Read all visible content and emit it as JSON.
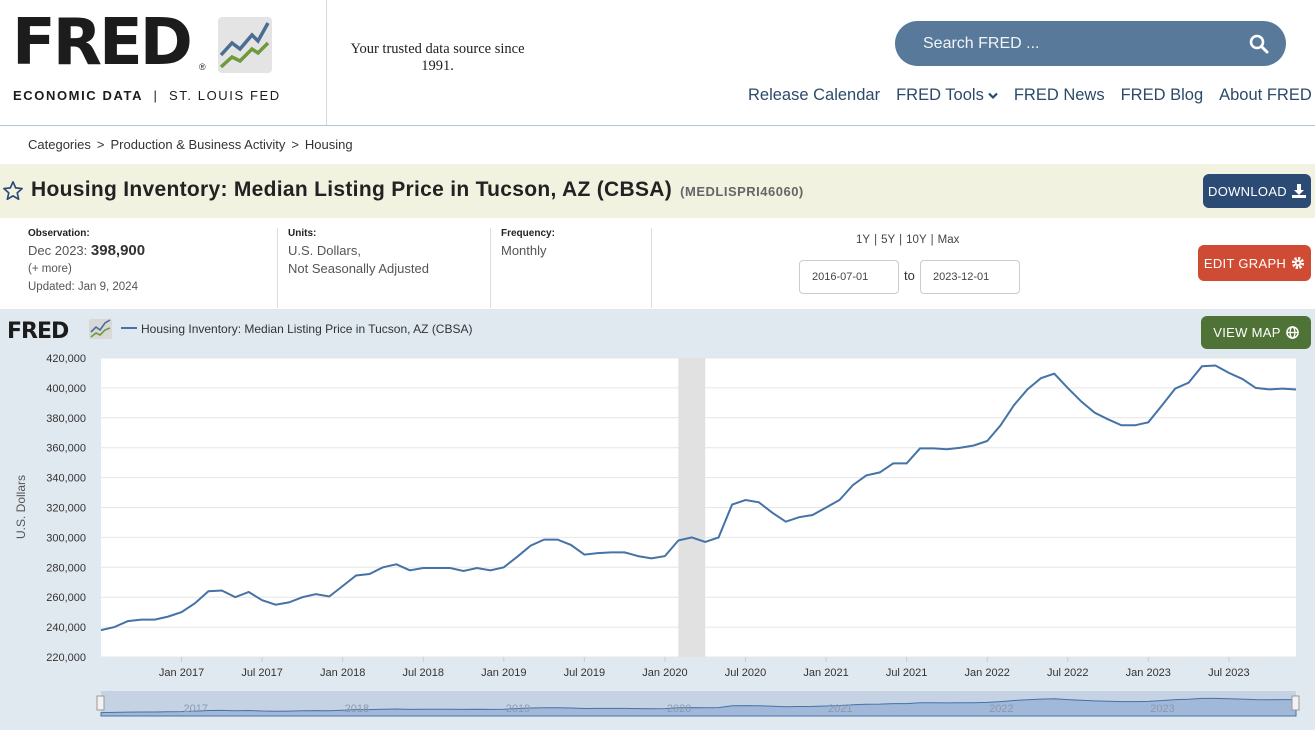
{
  "header": {
    "logo_text": "FRED",
    "logo_sub_bold": "ECONOMIC DATA",
    "logo_sub_sep": "|",
    "logo_sub_rest": "ST. LOUIS FED",
    "tagline": "Your trusted data source since 1991.",
    "search_placeholder": "Search FRED ...",
    "nav": [
      "Release Calendar",
      "FRED Tools",
      "FRED News",
      "FRED Blog",
      "About FRED"
    ]
  },
  "breadcrumb": [
    "Categories",
    "Production & Business Activity",
    "Housing"
  ],
  "series": {
    "title": "Housing Inventory: Median Listing Price in Tucson, AZ (CBSA)",
    "id": "(MEDLISPRI46060)"
  },
  "buttons": {
    "download": "DOWNLOAD",
    "edit_graph": "EDIT GRAPH",
    "view_map": "VIEW MAP"
  },
  "meta": {
    "observation_label": "Observation:",
    "observation_date": "Dec 2023:",
    "observation_value": "398,900",
    "more": "(+ more)",
    "updated": "Updated: Jan 9, 2024",
    "units_label": "Units:",
    "units_line1": "U.S. Dollars,",
    "units_line2": "Not Seasonally Adjusted",
    "frequency_label": "Frequency:",
    "frequency": "Monthly"
  },
  "range_buttons": [
    "1Y",
    "5Y",
    "10Y",
    "Max"
  ],
  "range_sep": "|",
  "date_from": "2016-07-01",
  "date_to": "2023-12-01",
  "to_label": "to",
  "chart_data": {
    "type": "line",
    "legend": "Housing Inventory: Median Listing Price in Tucson, AZ (CBSA)",
    "ylabel": "U.S. Dollars",
    "xlabel": "",
    "ylim": [
      220000,
      420000
    ],
    "yticks": [
      220000,
      240000,
      260000,
      280000,
      300000,
      320000,
      340000,
      360000,
      380000,
      400000,
      420000
    ],
    "ytick_labels": [
      "220,000",
      "240,000",
      "260,000",
      "280,000",
      "300,000",
      "320,000",
      "340,000",
      "360,000",
      "380,000",
      "400,000",
      "420,000"
    ],
    "xtick_labels": [
      "Jan 2017",
      "Jul 2017",
      "Jan 2018",
      "Jul 2018",
      "Jan 2019",
      "Jul 2019",
      "Jan 2020",
      "Jul 2020",
      "Jan 2021",
      "Jul 2021",
      "Jan 2022",
      "Jul 2022",
      "Jan 2023",
      "Jul 2023"
    ],
    "navigator_labels": [
      "2017",
      "2018",
      "2019",
      "2020",
      "2021",
      "2022",
      "2023"
    ],
    "recession": {
      "start": "2020-02-01",
      "end": "2020-04-01"
    },
    "color": "#4572a7",
    "x": [
      "2016-07",
      "2016-08",
      "2016-09",
      "2016-10",
      "2016-11",
      "2016-12",
      "2017-01",
      "2017-02",
      "2017-03",
      "2017-04",
      "2017-05",
      "2017-06",
      "2017-07",
      "2017-08",
      "2017-09",
      "2017-10",
      "2017-11",
      "2017-12",
      "2018-01",
      "2018-02",
      "2018-03",
      "2018-04",
      "2018-05",
      "2018-06",
      "2018-07",
      "2018-08",
      "2018-09",
      "2018-10",
      "2018-11",
      "2018-12",
      "2019-01",
      "2019-02",
      "2019-03",
      "2019-04",
      "2019-05",
      "2019-06",
      "2019-07",
      "2019-08",
      "2019-09",
      "2019-10",
      "2019-11",
      "2019-12",
      "2020-01",
      "2020-02",
      "2020-03",
      "2020-04",
      "2020-05",
      "2020-06",
      "2020-07",
      "2020-08",
      "2020-09",
      "2020-10",
      "2020-11",
      "2020-12",
      "2021-01",
      "2021-02",
      "2021-03",
      "2021-04",
      "2021-05",
      "2021-06",
      "2021-07",
      "2021-08",
      "2021-09",
      "2021-10",
      "2021-11",
      "2021-12",
      "2022-01",
      "2022-02",
      "2022-03",
      "2022-04",
      "2022-05",
      "2022-06",
      "2022-07",
      "2022-08",
      "2022-09",
      "2022-10",
      "2022-11",
      "2022-12",
      "2023-01",
      "2023-02",
      "2023-03",
      "2023-04",
      "2023-05",
      "2023-06",
      "2023-07",
      "2023-08",
      "2023-09",
      "2023-10",
      "2023-11",
      "2023-12"
    ],
    "values": [
      238000,
      240000,
      244000,
      245000,
      245000,
      247000,
      250000,
      256000,
      264000,
      264500,
      260000,
      263500,
      258000,
      255000,
      256500,
      260000,
      262000,
      260500,
      267500,
      274500,
      275500,
      280000,
      282000,
      278000,
      279500,
      279500,
      279500,
      277500,
      279500,
      278000,
      280000,
      287000,
      294500,
      298500,
      298500,
      295000,
      288500,
      289500,
      290000,
      290000,
      287500,
      286000,
      287500,
      298000,
      300000,
      297000,
      300000,
      322000,
      325000,
      323500,
      316500,
      310500,
      313500,
      315000,
      320000,
      325000,
      335000,
      341500,
      343500,
      349500,
      349500,
      359500,
      359500,
      359000,
      360000,
      361500,
      364500,
      375000,
      388500,
      399000,
      406500,
      409500,
      400000,
      391000,
      383500,
      379000,
      375000,
      375000,
      377000,
      388000,
      399500,
      403500,
      414500,
      415000,
      410000,
      406000,
      400000,
      399000,
      399500,
      398900
    ]
  }
}
